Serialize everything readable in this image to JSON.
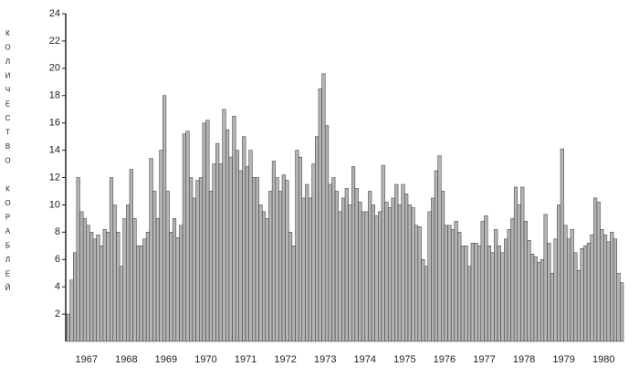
{
  "chart_data": {
    "type": "bar",
    "y_label": "КОЛИЧЕСТВО КОРАБЛЕЙ",
    "color": "#b4b4b4",
    "categories": [
      null,
      null,
      null,
      null,
      null,
      null,
      "1967",
      null,
      null,
      null,
      null,
      null,
      null,
      null,
      null,
      null,
      null,
      null,
      "1968",
      null,
      null,
      null,
      null,
      null,
      null,
      null,
      null,
      null,
      null,
      null,
      "1969",
      null,
      null,
      null,
      null,
      null,
      null,
      null,
      null,
      null,
      null,
      null,
      "1970",
      null,
      null,
      null,
      null,
      null,
      null,
      null,
      null,
      null,
      null,
      null,
      "1971",
      null,
      null,
      null,
      null,
      null,
      null,
      null,
      null,
      null,
      null,
      null,
      "1972",
      null,
      null,
      null,
      null,
      null,
      null,
      null,
      null,
      null,
      null,
      null,
      "1973",
      null,
      null,
      null,
      null,
      null,
      null,
      null,
      null,
      null,
      null,
      null,
      "1974",
      null,
      null,
      null,
      null,
      null,
      null,
      null,
      null,
      null,
      null,
      null,
      "1975",
      null,
      null,
      null,
      null,
      null,
      null,
      null,
      null,
      null,
      null,
      null,
      "1976",
      null,
      null,
      null,
      null,
      null,
      null,
      null,
      null,
      null,
      null,
      null,
      "1977",
      null,
      null,
      null,
      null,
      null,
      null,
      null,
      null,
      null,
      null,
      null,
      "1978",
      null,
      null,
      null,
      null,
      null,
      null,
      null,
      null,
      null,
      null,
      null,
      "1979",
      null,
      null,
      null,
      null,
      null,
      null,
      null,
      null,
      null,
      null,
      null,
      "1980",
      null,
      null,
      null,
      null,
      null
    ],
    "values": [
      2,
      4.5,
      6.5,
      12,
      9.5,
      9,
      8.5,
      8,
      7.5,
      7.8,
      7,
      8.2,
      8,
      12,
      10,
      8,
      5.5,
      9,
      10,
      12.6,
      9,
      7,
      7,
      7.5,
      8,
      13.4,
      11,
      9,
      14,
      18,
      11,
      8,
      9,
      7.6,
      8.5,
      15.2,
      15.4,
      12,
      10.5,
      11.8,
      12,
      16,
      16.2,
      11,
      13,
      14.5,
      13,
      17,
      15.5,
      13.5,
      16.5,
      14,
      12.5,
      15,
      12.8,
      14,
      12,
      12,
      10,
      9.5,
      9,
      11,
      13.2,
      12,
      11,
      12.2,
      11.8,
      8,
      7,
      14,
      13.5,
      10.5,
      11.5,
      10.5,
      13,
      15,
      18.5,
      19.6,
      15.8,
      11.5,
      12,
      11,
      9.5,
      10.5,
      11.2,
      10,
      12.8,
      11.2,
      10.2,
      9.5,
      9.5,
      11,
      10,
      9.2,
      9.5,
      12.9,
      10.2,
      9.8,
      10.5,
      11.5,
      10,
      11.5,
      10.8,
      10,
      9.8,
      8.5,
      8.4,
      6,
      5.5,
      9.5,
      10.5,
      12.5,
      13.6,
      11,
      8.5,
      8.5,
      8.2,
      8.8,
      8,
      7,
      7,
      5.5,
      7.2,
      7.2,
      7,
      8.8,
      9.2,
      7,
      6.5,
      8.2,
      7,
      6.5,
      7.5,
      8.2,
      9,
      11.3,
      10,
      11.3,
      8.8,
      7.4,
      6.4,
      6.2,
      5.8,
      6,
      9.3,
      7.2,
      5,
      7.5,
      10,
      14.1,
      8.5,
      7.5,
      8.2,
      6.5,
      5.2,
      6.8,
      7,
      7.2,
      7.8,
      10.5,
      10.2,
      8.2,
      7.8,
      7.3,
      8,
      7.5,
      5,
      4.3
    ],
    "ylim": [
      0,
      24
    ],
    "yticks": [
      2,
      4,
      6,
      8,
      10,
      12,
      14,
      16,
      18,
      20,
      22,
      24
    ]
  }
}
